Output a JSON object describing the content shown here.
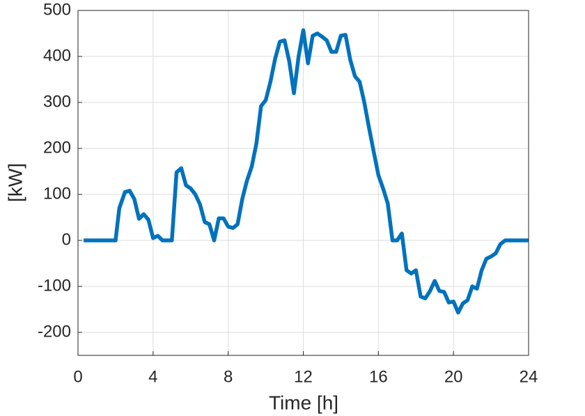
{
  "chart_data": {
    "type": "line",
    "xlabel": "Time [h]",
    "ylabel": "[kW]",
    "x": [
      0.3,
      2.0,
      2.2,
      2.5,
      2.75,
      3.0,
      3.25,
      3.5,
      3.75,
      4.0,
      4.25,
      4.5,
      5.0,
      5.25,
      5.5,
      5.75,
      6.0,
      6.25,
      6.5,
      6.75,
      7.0,
      7.25,
      7.5,
      7.75,
      8.0,
      8.25,
      8.5,
      8.75,
      9.0,
      9.25,
      9.5,
      9.75,
      10.0,
      10.25,
      10.5,
      10.75,
      11.0,
      11.25,
      11.5,
      11.75,
      12.0,
      12.25,
      12.5,
      12.75,
      13.0,
      13.25,
      13.5,
      13.75,
      14.0,
      14.25,
      14.5,
      14.75,
      15.0,
      15.25,
      15.5,
      15.75,
      16.0,
      16.25,
      16.5,
      16.75,
      17.0,
      17.25,
      17.5,
      17.75,
      18.0,
      18.25,
      18.5,
      18.75,
      19.0,
      19.25,
      19.5,
      19.75,
      20.0,
      20.25,
      20.5,
      20.75,
      21.0,
      21.25,
      21.5,
      21.75,
      22.0,
      22.25,
      22.5,
      22.75,
      24.0
    ],
    "series": [
      {
        "color": "#0072bd",
        "values": [
          0,
          0,
          70,
          105,
          108,
          90,
          47,
          57,
          45,
          5,
          10,
          0,
          0,
          148,
          157,
          120,
          113,
          100,
          78,
          40,
          35,
          0,
          48,
          48,
          30,
          27,
          35,
          90,
          130,
          160,
          210,
          292,
          305,
          345,
          395,
          432,
          435,
          390,
          320,
          400,
          457,
          385,
          445,
          450,
          443,
          435,
          410,
          410,
          445,
          447,
          393,
          357,
          345,
          300,
          245,
          193,
          142,
          113,
          80,
          0,
          0,
          15,
          -65,
          -72,
          -65,
          -122,
          -126,
          -110,
          -88,
          -110,
          -112,
          -135,
          -133,
          -157,
          -137,
          -130,
          -100,
          -105,
          -65,
          -40,
          -35,
          -28,
          -8,
          0,
          0
        ]
      }
    ],
    "xlim": [
      0,
      24
    ],
    "xticks": [
      0,
      4,
      8,
      12,
      16,
      20,
      24
    ],
    "ylim": [
      -250,
      500
    ],
    "yticks": [
      -200,
      -100,
      0,
      100,
      200,
      300,
      400,
      500
    ],
    "grid": true
  }
}
